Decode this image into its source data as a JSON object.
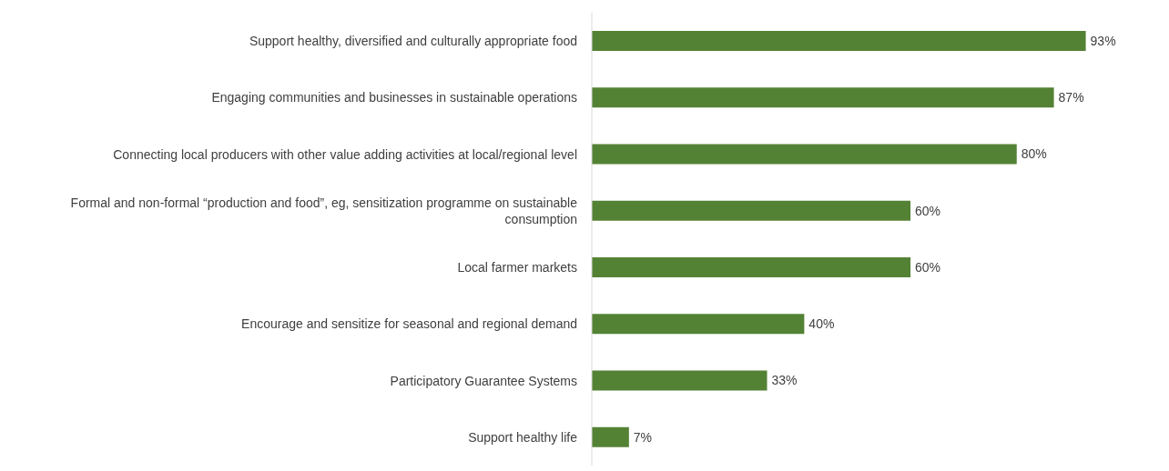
{
  "chart_data": {
    "type": "bar",
    "orientation": "horizontal",
    "categories": [
      "Support healthy, diversified and culturally appropriate food",
      "Engaging communities and businesses in sustainable operations",
      "Connecting local producers with other value adding activities at local/regional level",
      "Formal and non-formal “production and food”, eg, sensitization programme on sustainable consumption",
      "Local farmer markets",
      "Encourage and sensitize for seasonal and regional demand",
      "Participatory Guarantee Systems",
      "Support healthy life"
    ],
    "values": [
      93,
      87,
      80,
      60,
      60,
      40,
      33,
      7
    ],
    "value_labels": [
      "93%",
      "87%",
      "80%",
      "60%",
      "60%",
      "40%",
      "33%",
      "7%"
    ],
    "color": "#548235",
    "grid": false,
    "legend": false
  }
}
